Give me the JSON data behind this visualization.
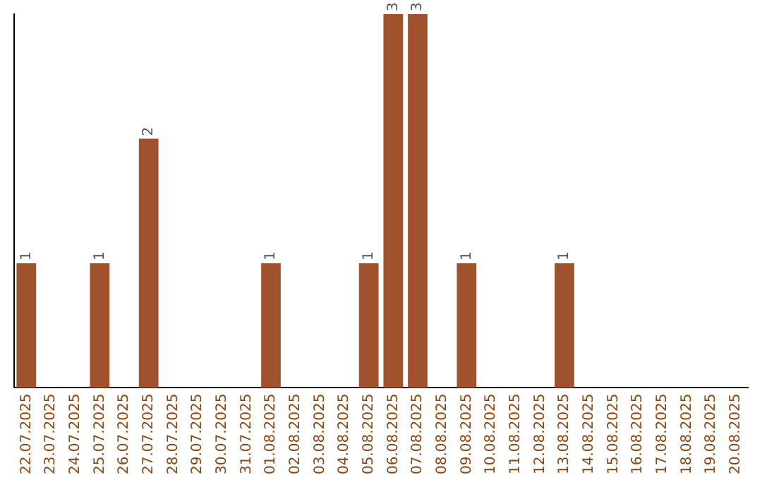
{
  "chart_data": {
    "type": "bar",
    "categories": [
      "22.07.2025",
      "23.07.2025",
      "24.07.2025",
      "25.07.2025",
      "26.07.2025",
      "27.07.2025",
      "28.07.2025",
      "29.07.2025",
      "30.07.2025",
      "31.07.2025",
      "01.08.2025",
      "02.08.2025",
      "03.08.2025",
      "04.08.2025",
      "05.08.2025",
      "06.08.2025",
      "07.08.2025",
      "08.08.2025",
      "09.08.2025",
      "10.08.2025",
      "11.08.2025",
      "12.08.2025",
      "13.08.2025",
      "14.08.2025",
      "15.08.2025",
      "16.08.2025",
      "17.08.2025",
      "18.08.2025",
      "19.08.2025",
      "20.08.2025"
    ],
    "values": [
      1,
      0,
      0,
      1,
      0,
      2,
      0,
      0,
      0,
      0,
      1,
      0,
      0,
      0,
      1,
      3,
      3,
      0,
      1,
      0,
      0,
      0,
      1,
      0,
      0,
      0,
      0,
      0,
      0,
      0
    ],
    "value_labels": [
      "1",
      null,
      null,
      "1",
      null,
      "2",
      null,
      null,
      null,
      null,
      "1",
      null,
      null,
      null,
      "1",
      "3",
      "3",
      null,
      "1",
      null,
      null,
      null,
      "1",
      null,
      null,
      null,
      null,
      null,
      null,
      null
    ],
    "color": "#a0522d",
    "ylim": [
      0,
      3
    ],
    "tick_labels": "x",
    "grid": false,
    "legend": false
  }
}
